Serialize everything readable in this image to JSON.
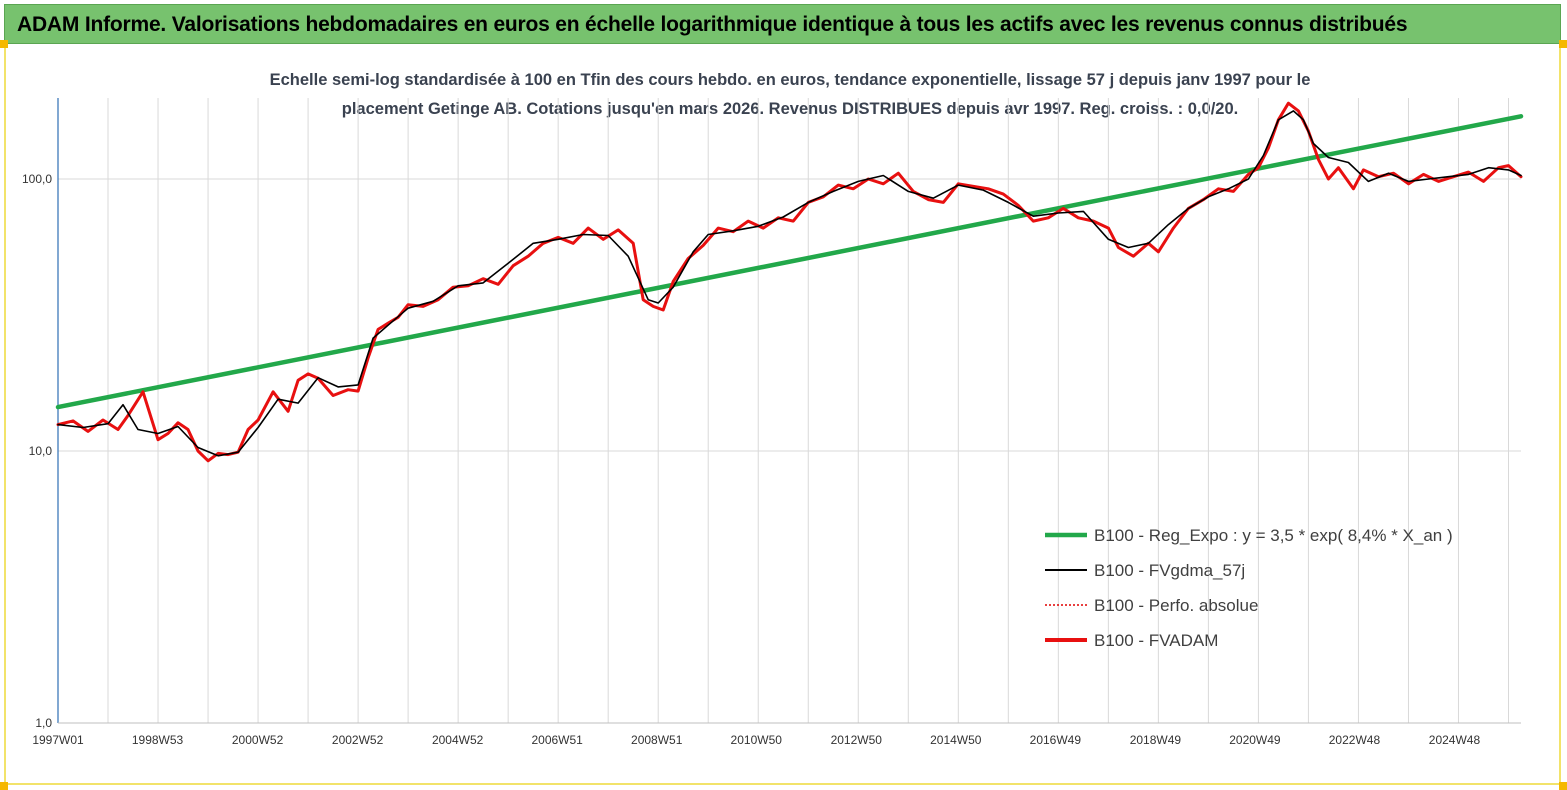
{
  "header": {
    "title": "ADAM Informe. Valorisations hebdomadaires en euros en échelle logarithmique identique à tous les actifs avec les revenus connus distribués"
  },
  "chart_data": {
    "type": "line",
    "subtitle_line1": "Echelle semi-log standardisée à 100 en Tfin des cours hebdo. en euros, tendance exponentielle, lissage 57 j depuis janv 1997 pour le",
    "subtitle_line2": "placement Getinge AB. Cotations jusqu'en mars 2026. Revenus DISTRIBUES depuis avr 1997. Reg. croiss. : 0,0/20.",
    "y_scale": "log",
    "ylim": [
      1,
      200
    ],
    "y_ticks": [
      {
        "value": 1,
        "label": "1,0"
      },
      {
        "value": 10,
        "label": "10,0"
      },
      {
        "value": 100,
        "label": "100,0"
      }
    ],
    "x_range": [
      1997.0,
      2026.25
    ],
    "x_ticks": [
      {
        "year": 1997.0,
        "label": "1997W01"
      },
      {
        "year": 1998.99,
        "label": "1998W53"
      },
      {
        "year": 2000.99,
        "label": "2000W52"
      },
      {
        "year": 2002.99,
        "label": "2002W52"
      },
      {
        "year": 2004.99,
        "label": "2004W52"
      },
      {
        "year": 2006.98,
        "label": "2006W51"
      },
      {
        "year": 2008.97,
        "label": "2008W51"
      },
      {
        "year": 2010.96,
        "label": "2010W50"
      },
      {
        "year": 2012.96,
        "label": "2012W50"
      },
      {
        "year": 2014.95,
        "label": "2014W50"
      },
      {
        "year": 2016.94,
        "label": "2016W49"
      },
      {
        "year": 2018.94,
        "label": "2018W49"
      },
      {
        "year": 2020.93,
        "label": "2020W49"
      },
      {
        "year": 2022.92,
        "label": "2022W48"
      },
      {
        "year": 2024.92,
        "label": "2024W48"
      }
    ],
    "grid": "vertical",
    "legend_position": "bottom-right",
    "colors": {
      "regression": "#22a84a",
      "smoothed": "#000000",
      "perfo": "#e00000",
      "fvadam": "#e81010",
      "axis": "#2e6fb3",
      "grid": "#d9d9d9",
      "tick_label": "#333333"
    },
    "series": [
      {
        "name": "B100 - Reg_Expo : y = 3,5 * exp( 8,4% *  X_an )",
        "key": "regression",
        "x": [
          1997.0,
          2026.25
        ],
        "y": [
          14.5,
          170
        ]
      },
      {
        "name": "B100 - FVgdma_57j",
        "key": "smoothed",
        "x": [
          1997.0,
          1997.5,
          1998.0,
          1998.3,
          1998.6,
          1999.0,
          1999.4,
          1999.8,
          2000.2,
          2000.6,
          2001.0,
          2001.4,
          2001.8,
          2002.2,
          2002.6,
          2003.0,
          2003.3,
          2003.6,
          2004.0,
          2004.5,
          2005.0,
          2005.5,
          2006.0,
          2006.5,
          2007.0,
          2007.5,
          2008.0,
          2008.4,
          2008.8,
          2009.0,
          2009.3,
          2009.7,
          2010.0,
          2010.5,
          2011.0,
          2011.5,
          2012.0,
          2012.5,
          2013.0,
          2013.5,
          2014.0,
          2014.5,
          2015.0,
          2015.5,
          2016.0,
          2016.5,
          2017.0,
          2017.5,
          2018.0,
          2018.4,
          2018.8,
          2019.2,
          2019.6,
          2020.0,
          2020.4,
          2020.8,
          2021.1,
          2021.4,
          2021.7,
          2021.9,
          2022.1,
          2022.4,
          2022.8,
          2023.2,
          2023.6,
          2024.0,
          2024.4,
          2024.8,
          2025.2,
          2025.6,
          2026.0,
          2026.25
        ],
        "y": [
          12.5,
          12.2,
          12.6,
          14.8,
          12.0,
          11.6,
          12.3,
          10.3,
          9.6,
          9.9,
          12.2,
          15.5,
          15.0,
          18.6,
          17.2,
          17.5,
          26.0,
          29.0,
          33.5,
          35.5,
          40.5,
          41.5,
          49.0,
          58.0,
          60.0,
          62.5,
          62.0,
          52.0,
          36.0,
          35.0,
          40.0,
          54.0,
          62.5,
          64.5,
          67.0,
          72.5,
          82.0,
          90.0,
          98.0,
          103.0,
          90.0,
          85.0,
          95.0,
          91.0,
          82.0,
          73.0,
          75.0,
          76.0,
          60.0,
          56.0,
          58.0,
          68.0,
          78.0,
          86.0,
          92.0,
          100.0,
          122.0,
          165.0,
          178.0,
          165.0,
          135.0,
          120.0,
          115.0,
          98.0,
          105.0,
          98.0,
          100.0,
          102.0,
          104.0,
          110.0,
          108.0,
          103.0
        ]
      },
      {
        "name": "B100 - Perfo. absolue",
        "key": "perfo"
      },
      {
        "name": "B100 - FVADAM",
        "key": "fvadam",
        "x": [
          1997.0,
          1997.3,
          1997.6,
          1997.9,
          1998.2,
          1998.4,
          1998.7,
          1999.0,
          1999.2,
          1999.4,
          1999.6,
          1999.8,
          2000.0,
          2000.2,
          2000.4,
          2000.6,
          2000.8,
          2001.0,
          2001.3,
          2001.6,
          2001.8,
          2002.0,
          2002.2,
          2002.5,
          2002.8,
          2003.0,
          2003.2,
          2003.4,
          2003.6,
          2003.8,
          2004.0,
          2004.3,
          2004.6,
          2004.9,
          2005.2,
          2005.5,
          2005.8,
          2006.1,
          2006.4,
          2006.7,
          2007.0,
          2007.3,
          2007.6,
          2007.9,
          2008.2,
          2008.5,
          2008.7,
          2008.9,
          2009.1,
          2009.3,
          2009.6,
          2009.9,
          2010.2,
          2010.5,
          2010.8,
          2011.1,
          2011.4,
          2011.7,
          2012.0,
          2012.3,
          2012.6,
          2012.9,
          2013.2,
          2013.5,
          2013.8,
          2014.1,
          2014.4,
          2014.7,
          2015.0,
          2015.3,
          2015.6,
          2015.9,
          2016.2,
          2016.5,
          2016.8,
          2017.1,
          2017.4,
          2017.7,
          2018.0,
          2018.2,
          2018.5,
          2018.8,
          2019.0,
          2019.3,
          2019.6,
          2019.9,
          2020.2,
          2020.5,
          2020.8,
          2021.0,
          2021.2,
          2021.4,
          2021.6,
          2021.8,
          2022.0,
          2022.2,
          2022.4,
          2022.6,
          2022.9,
          2023.1,
          2023.4,
          2023.7,
          2024.0,
          2024.3,
          2024.6,
          2024.9,
          2025.2,
          2025.5,
          2025.8,
          2026.0,
          2026.25
        ],
        "y": [
          12.5,
          12.9,
          11.8,
          13.0,
          12.0,
          13.5,
          16.5,
          11.0,
          11.6,
          12.7,
          12.0,
          10.0,
          9.2,
          9.8,
          9.7,
          9.9,
          12.0,
          13.0,
          16.5,
          14.0,
          18.2,
          19.2,
          18.5,
          16.0,
          16.8,
          16.6,
          22.0,
          28.0,
          29.5,
          31.0,
          34.5,
          34.0,
          36.0,
          40.0,
          40.5,
          43.0,
          41.0,
          48.0,
          52.0,
          58.0,
          61.0,
          58.0,
          66.0,
          60.0,
          65.0,
          58.0,
          36.0,
          34.0,
          33.0,
          42.0,
          51.0,
          57.0,
          66.0,
          64.0,
          70.0,
          66.0,
          72.0,
          70.0,
          82.0,
          86.0,
          95.0,
          92.0,
          100.0,
          96.0,
          105.0,
          90.0,
          84.0,
          82.0,
          96.0,
          94.0,
          92.0,
          88.0,
          80.0,
          70.0,
          72.0,
          78.0,
          72.0,
          70.0,
          66.0,
          56.0,
          52.0,
          58.0,
          54.0,
          66.0,
          78.0,
          84.0,
          92.0,
          90.0,
          104.0,
          110.0,
          130.0,
          165.0,
          190.0,
          178.0,
          150.0,
          118.0,
          100.0,
          110.0,
          92.0,
          108.0,
          102.0,
          105.0,
          96.0,
          104.0,
          98.0,
          102.0,
          106.0,
          98.0,
          110.0,
          112.0,
          102.0
        ]
      }
    ]
  }
}
